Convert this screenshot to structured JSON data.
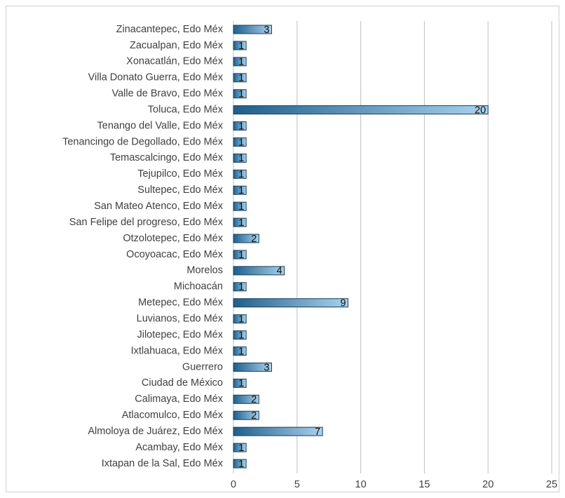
{
  "chart_data": {
    "type": "bar",
    "orientation": "horizontal",
    "categories": [
      "Zinacantepec, Edo Méx",
      "Zacualpan, Edo Méx",
      "Xonacatlán, Edo Méx",
      "Villa Donato Guerra, Edo Méx",
      "Valle de Bravo, Edo Méx",
      "Toluca, Edo Méx",
      "Tenango del Valle, Edo Méx",
      "Tenancingo de Degollado, Edo Méx",
      "Temascalcingo, Edo Méx",
      "Tejupilco, Edo Méx",
      "Sultepec, Edo Méx",
      "San Mateo Atenco, Edo Méx",
      "San Felipe del progreso, Edo Méx",
      "Otzolotepec, Edo Méx",
      "Ocoyoacac, Edo Méx",
      "Morelos",
      "Michoacán",
      "Metepec, Edo Méx",
      "Luvianos, Edo Méx",
      "Jilotepec, Edo Méx",
      "Ixtlahuaca, Edo Méx",
      "Guerrero",
      "Ciudad de México",
      "Calimaya, Edo Méx",
      "Atlacomulco, Edo Méx",
      "Almoloya de Juárez, Edo Méx",
      "Acambay, Edo Méx",
      "Ixtapan de la Sal, Edo Méx"
    ],
    "values": [
      3,
      1,
      1,
      1,
      1,
      20,
      1,
      1,
      1,
      1,
      1,
      1,
      1,
      2,
      1,
      4,
      1,
      9,
      1,
      1,
      1,
      3,
      1,
      2,
      2,
      7,
      1,
      1
    ],
    "color": "#1f5f8b",
    "xlim": [
      0,
      25
    ],
    "xticks": [
      0,
      5,
      10,
      15,
      20,
      25
    ],
    "grid": true
  }
}
